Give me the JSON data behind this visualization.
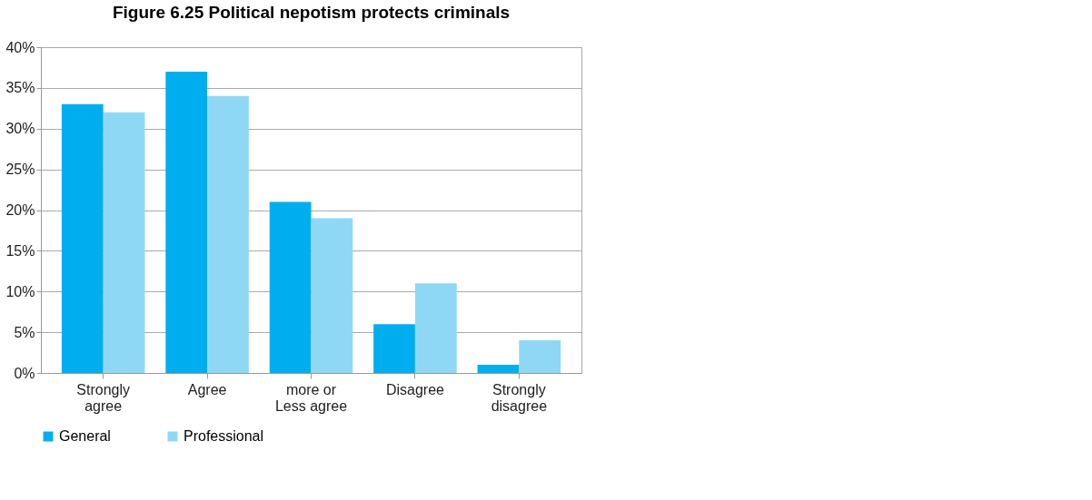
{
  "chart_data": {
    "type": "bar",
    "title": "Figure 6.25 Political nepotism protects criminals",
    "categories": [
      "Strongly agree",
      "Agree",
      "more or Less agree",
      "Disagree",
      "Strongly disagree"
    ],
    "series": [
      {
        "name": "General",
        "color": "#00aeef",
        "values": [
          33,
          37,
          21,
          6,
          1
        ]
      },
      {
        "name": "Professional",
        "color": "#8fd8f5",
        "values": [
          32,
          34,
          19,
          11,
          4
        ]
      }
    ],
    "ylim": [
      0,
      40
    ],
    "yticks": [
      {
        "value": 0,
        "label": "0%"
      },
      {
        "value": 5,
        "label": "5%"
      },
      {
        "value": 10,
        "label": "10%"
      },
      {
        "value": 15,
        "label": "15%"
      },
      {
        "value": 20,
        "label": "20%"
      },
      {
        "value": 25,
        "label": "25%"
      },
      {
        "value": 30,
        "label": "30%"
      },
      {
        "value": 35,
        "label": "35%"
      },
      {
        "value": 40,
        "label": "40%"
      }
    ],
    "grid": "y",
    "legend": "bottom"
  }
}
